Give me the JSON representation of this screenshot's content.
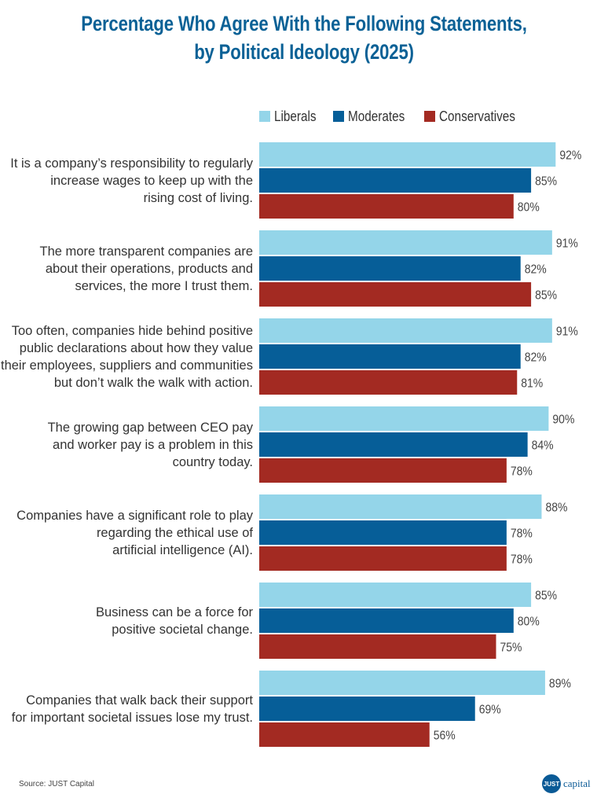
{
  "chart_data": {
    "type": "bar",
    "orientation": "horizontal",
    "title": "Percentage Who Agree With the Following Statements, by Political Ideology (2025)",
    "title_lines": [
      "Percentage Who Agree With the Following Statements,",
      "by Political Ideology (2025)"
    ],
    "xlabel": "",
    "ylabel": "",
    "unit": "%",
    "legend_position": "top",
    "grid": false,
    "categories": [
      [
        "It is a company’s responsibility to regularly",
        "increase wages to keep up with the",
        "rising cost of living."
      ],
      [
        "The more transparent companies are",
        "about their operations, products and",
        "services, the more I trust them."
      ],
      [
        "Too often, companies hide behind positive",
        "public declarations about how they value",
        "their employees, suppliers and communities",
        "but don’t walk the walk with action."
      ],
      [
        "The growing gap between CEO pay",
        "and worker pay is a problem in this",
        "country today."
      ],
      [
        "Companies have a significant role to play",
        "regarding the ethical use of",
        "artificial intelligence (AI)."
      ],
      [
        "Business can be a force for",
        "positive societal change."
      ],
      [
        "Companies that walk back their support",
        "for important societal issues lose my trust."
      ]
    ],
    "series": [
      {
        "name": "Liberals",
        "color": "#94d5e9",
        "values": [
          92,
          91,
          91,
          90,
          88,
          85,
          89
        ],
        "labels": [
          "92%",
          "91%",
          "91%",
          "90%",
          "88%",
          "85%",
          "89%"
        ]
      },
      {
        "name": "Moderates",
        "color": "#065e98",
        "values": [
          85,
          82,
          82,
          84,
          78,
          80,
          69
        ],
        "labels": [
          "85%",
          "82%",
          "82%",
          "84%",
          "78%",
          "80%",
          "69%"
        ]
      },
      {
        "name": "Conservatives",
        "color": "#a32a22",
        "values": [
          80,
          85,
          81,
          78,
          78,
          75,
          56
        ],
        "labels": [
          "80%",
          "85%",
          "81%",
          "78%",
          "78%",
          "75%",
          "56%"
        ]
      }
    ]
  },
  "footer": {
    "source": "Source: JUST Capital",
    "logo_mark": "JUST",
    "logo_word": "capital"
  }
}
